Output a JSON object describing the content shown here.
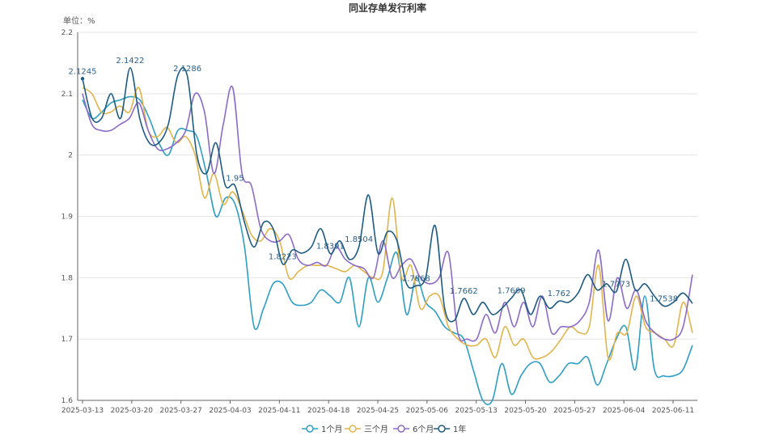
{
  "chart_data": {
    "type": "line",
    "title": "同业存单发行利率",
    "unit_label": "单位：%",
    "ylim": [
      1.6,
      2.2
    ],
    "y_ticks": [
      1.6,
      1.7,
      1.8,
      1.9,
      2,
      2.1,
      2.2
    ],
    "x_ticks": [
      "2025-03-13",
      "2025-03-20",
      "2025-03-27",
      "2025-04-03",
      "2025-04-11",
      "2025-04-18",
      "2025-04-25",
      "2025-05-06",
      "2025-05-13",
      "2025-05-20",
      "2025-05-27",
      "2025-06-04",
      "2025-06-11"
    ],
    "grid": true,
    "legend_position": "bottom",
    "colors": [
      "#2e9ec4",
      "#e2b44c",
      "#8c6bc8",
      "#1e5b82"
    ],
    "series": [
      {
        "name": "1个月",
        "color": "#2e9ec4",
        "values": [
          2.09,
          2.06,
          2.07,
          2.085,
          2.09,
          2.095,
          2.09,
          2.06,
          2.02,
          2.0,
          2.04,
          2.04,
          2.03,
          1.97,
          1.9,
          1.93,
          1.92,
          1.85,
          1.72,
          1.75,
          1.79,
          1.79,
          1.76,
          1.755,
          1.76,
          1.78,
          1.77,
          1.76,
          1.8,
          1.72,
          1.8,
          1.76,
          1.8,
          1.84,
          1.74,
          1.8,
          1.76,
          1.745,
          1.72,
          1.71,
          1.7,
          1.65,
          1.6,
          1.6,
          1.66,
          1.61,
          1.64,
          1.66,
          1.66,
          1.63,
          1.64,
          1.66,
          1.66,
          1.67,
          1.625,
          1.66,
          1.7,
          1.72,
          1.65,
          1.77,
          1.65,
          1.64,
          1.64,
          1.65,
          1.69
        ]
      },
      {
        "name": "三个月",
        "color": "#e2b44c",
        "values": [
          2.11,
          2.1,
          2.07,
          2.07,
          2.08,
          2.07,
          2.11,
          2.04,
          2.03,
          2.045,
          2.02,
          2.03,
          2.0,
          1.93,
          1.97,
          1.92,
          1.94,
          1.91,
          1.87,
          1.86,
          1.88,
          1.86,
          1.8,
          1.81,
          1.82,
          1.82,
          1.82,
          1.815,
          1.81,
          1.82,
          1.81,
          1.8,
          1.81,
          1.93,
          1.8,
          1.82,
          1.75,
          1.77,
          1.77,
          1.72,
          1.7,
          1.69,
          1.69,
          1.7,
          1.67,
          1.72,
          1.69,
          1.7,
          1.67,
          1.67,
          1.68,
          1.7,
          1.72,
          1.71,
          1.72,
          1.82,
          1.67,
          1.71,
          1.71,
          1.77,
          1.72,
          1.71,
          1.7,
          1.69,
          1.76,
          1.71
        ]
      },
      {
        "name": "6个月",
        "color": "#8c6bc8",
        "values": [
          2.1,
          2.05,
          2.04,
          2.04,
          2.05,
          2.06,
          2.085,
          2.04,
          2.01,
          2.01,
          2.02,
          2.04,
          2.1,
          2.07,
          1.97,
          2.05,
          2.11,
          1.97,
          1.95,
          1.88,
          1.86,
          1.86,
          1.87,
          1.83,
          1.82,
          1.825,
          1.82,
          1.85,
          1.83,
          1.82,
          1.815,
          1.8,
          1.86,
          1.8,
          1.82,
          1.83,
          1.8,
          1.79,
          1.8,
          1.84,
          1.71,
          1.7,
          1.7,
          1.74,
          1.71,
          1.76,
          1.72,
          1.76,
          1.72,
          1.77,
          1.71,
          1.72,
          1.72,
          1.73,
          1.76,
          1.845,
          1.73,
          1.8,
          1.75,
          1.78,
          1.73,
          1.71,
          1.7,
          1.7,
          1.72,
          1.805
        ]
      },
      {
        "name": "1年",
        "color": "#1e5b82",
        "values": [
          2.1245,
          2.06,
          2.06,
          2.1,
          2.06,
          2.1422,
          2.06,
          2.02,
          2.02,
          2.05,
          2.13,
          2.1286,
          2.0,
          1.97,
          2.02,
          1.95,
          1.95,
          1.89,
          1.85,
          1.89,
          1.88,
          1.8223,
          1.845,
          1.84,
          1.85,
          1.88,
          1.8391,
          1.86,
          1.83,
          1.8504,
          1.935,
          1.84,
          1.875,
          1.86,
          1.79,
          1.7868,
          1.8,
          1.885,
          1.75,
          1.73,
          1.7662,
          1.74,
          1.76,
          1.74,
          1.75,
          1.7669,
          1.78,
          1.74,
          1.77,
          1.75,
          1.762,
          1.76,
          1.775,
          1.805,
          1.78,
          1.79,
          1.7773,
          1.83,
          1.78,
          1.79,
          1.77,
          1.7538,
          1.76,
          1.775,
          1.758
        ]
      }
    ],
    "annotations": [
      {
        "label": "2.1245",
        "series": "1年",
        "x_index": 0,
        "value": 2.1245
      },
      {
        "label": "2.1422",
        "series": "1年",
        "x_index": 5,
        "value": 2.1422
      },
      {
        "label": "2.1286",
        "series": "1年",
        "x_index": 11,
        "value": 2.1286
      },
      {
        "label": "1.95",
        "series": "1年",
        "x_index": 16,
        "value": 1.95
      },
      {
        "label": "1.8223",
        "series": "1年",
        "x_index": 21,
        "value": 1.8223
      },
      {
        "label": "1.8391",
        "series": "1年",
        "x_index": 26,
        "value": 1.8391
      },
      {
        "label": "1.8504",
        "series": "1年",
        "x_index": 29,
        "value": 1.8504
      },
      {
        "label": "1.7868",
        "series": "1年",
        "x_index": 35,
        "value": 1.7868
      },
      {
        "label": "1.7662",
        "series": "1年",
        "x_index": 40,
        "value": 1.7662
      },
      {
        "label": "1.7669",
        "series": "1年",
        "x_index": 45,
        "value": 1.7669
      },
      {
        "label": "1.762",
        "series": "1年",
        "x_index": 50,
        "value": 1.762
      },
      {
        "label": "1.7773",
        "series": "1年",
        "x_index": 56,
        "value": 1.7773
      },
      {
        "label": "1.7538",
        "series": "1年",
        "x_index": 61,
        "value": 1.7538
      }
    ]
  }
}
